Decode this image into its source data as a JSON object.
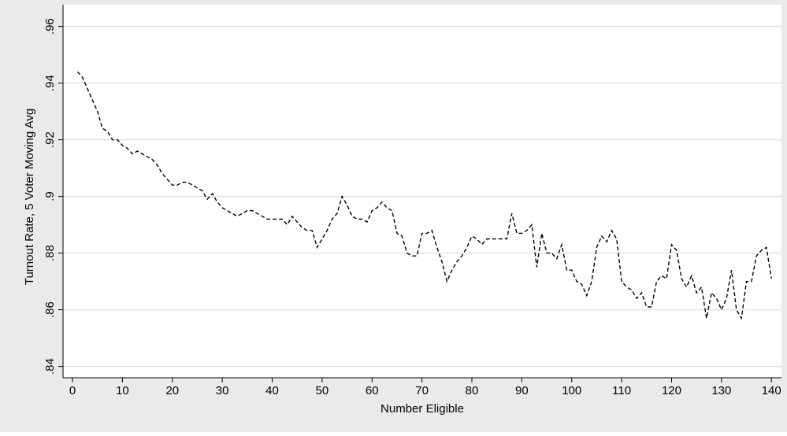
{
  "chart_data": {
    "type": "line",
    "xlabel": "Number Eligible",
    "ylabel": "Turnout Rate, 5 Voter Moving Avg",
    "x": [
      1,
      2,
      3,
      4,
      5,
      6,
      7,
      8,
      9,
      10,
      11,
      12,
      13,
      14,
      15,
      16,
      17,
      18,
      19,
      20,
      21,
      22,
      23,
      24,
      25,
      26,
      27,
      28,
      29,
      30,
      31,
      32,
      33,
      34,
      35,
      36,
      37,
      38,
      39,
      40,
      41,
      42,
      43,
      44,
      45,
      46,
      47,
      48,
      49,
      50,
      51,
      52,
      53,
      54,
      55,
      56,
      57,
      58,
      59,
      60,
      61,
      62,
      63,
      64,
      65,
      66,
      67,
      68,
      69,
      70,
      71,
      72,
      73,
      74,
      75,
      76,
      77,
      78,
      79,
      80,
      81,
      82,
      83,
      84,
      85,
      86,
      87,
      88,
      89,
      90,
      91,
      92,
      93,
      94,
      95,
      96,
      97,
      98,
      99,
      100,
      101,
      102,
      103,
      104,
      105,
      106,
      107,
      108,
      109,
      110,
      111,
      112,
      113,
      114,
      115,
      116,
      117,
      118,
      119,
      120,
      121,
      122,
      123,
      124,
      125,
      126,
      127,
      128,
      129,
      130,
      131,
      132,
      133,
      134,
      135,
      136,
      137,
      138,
      139,
      140
    ],
    "series": [
      {
        "color": "#000000",
        "dashed": true,
        "values": [
          0.944,
          0.942,
          0.938,
          0.934,
          0.93,
          0.924,
          0.923,
          0.92,
          0.92,
          0.918,
          0.917,
          0.915,
          0.916,
          0.915,
          0.914,
          0.913,
          0.911,
          0.908,
          0.906,
          0.904,
          0.904,
          0.905,
          0.905,
          0.904,
          0.903,
          0.902,
          0.899,
          0.901,
          0.898,
          0.896,
          0.895,
          0.894,
          0.893,
          0.894,
          0.895,
          0.895,
          0.894,
          0.893,
          0.892,
          0.892,
          0.892,
          0.892,
          0.89,
          0.893,
          0.891,
          0.889,
          0.888,
          0.888,
          0.882,
          0.885,
          0.888,
          0.892,
          0.894,
          0.9,
          0.897,
          0.893,
          0.892,
          0.892,
          0.891,
          0.895,
          0.896,
          0.898,
          0.896,
          0.895,
          0.887,
          0.886,
          0.88,
          0.879,
          0.879,
          0.887,
          0.887,
          0.888,
          0.882,
          0.877,
          0.87,
          0.874,
          0.877,
          0.879,
          0.882,
          0.886,
          0.885,
          0.883,
          0.885,
          0.885,
          0.885,
          0.885,
          0.885,
          0.894,
          0.887,
          0.887,
          0.888,
          0.89,
          0.875,
          0.887,
          0.88,
          0.88,
          0.878,
          0.883,
          0.874,
          0.874,
          0.87,
          0.869,
          0.865,
          0.87,
          0.882,
          0.886,
          0.884,
          0.888,
          0.885,
          0.87,
          0.868,
          0.867,
          0.864,
          0.866,
          0.861,
          0.861,
          0.87,
          0.872,
          0.871,
          0.883,
          0.881,
          0.871,
          0.868,
          0.872,
          0.866,
          0.868,
          0.857,
          0.866,
          0.864,
          0.86,
          0.864,
          0.874,
          0.86,
          0.857,
          0.87,
          0.87,
          0.879,
          0.881,
          0.882,
          0.871
        ]
      }
    ],
    "xlim": [
      -1.9,
      141.7
    ],
    "ylim": [
      0.836,
      0.961
    ],
    "xticks": [
      0,
      10,
      20,
      30,
      40,
      50,
      60,
      70,
      80,
      90,
      100,
      110,
      120,
      130,
      140
    ],
    "yticks": [
      {
        "value": 0.84,
        "label": ".84"
      },
      {
        "value": 0.86,
        "label": ".86"
      },
      {
        "value": 0.88,
        "label": ".88"
      },
      {
        "value": 0.9,
        "label": ".9"
      },
      {
        "value": 0.92,
        "label": ".92"
      },
      {
        "value": 0.94,
        "label": ".94"
      },
      {
        "value": 0.96,
        "label": ".96"
      }
    ],
    "grid": true
  }
}
